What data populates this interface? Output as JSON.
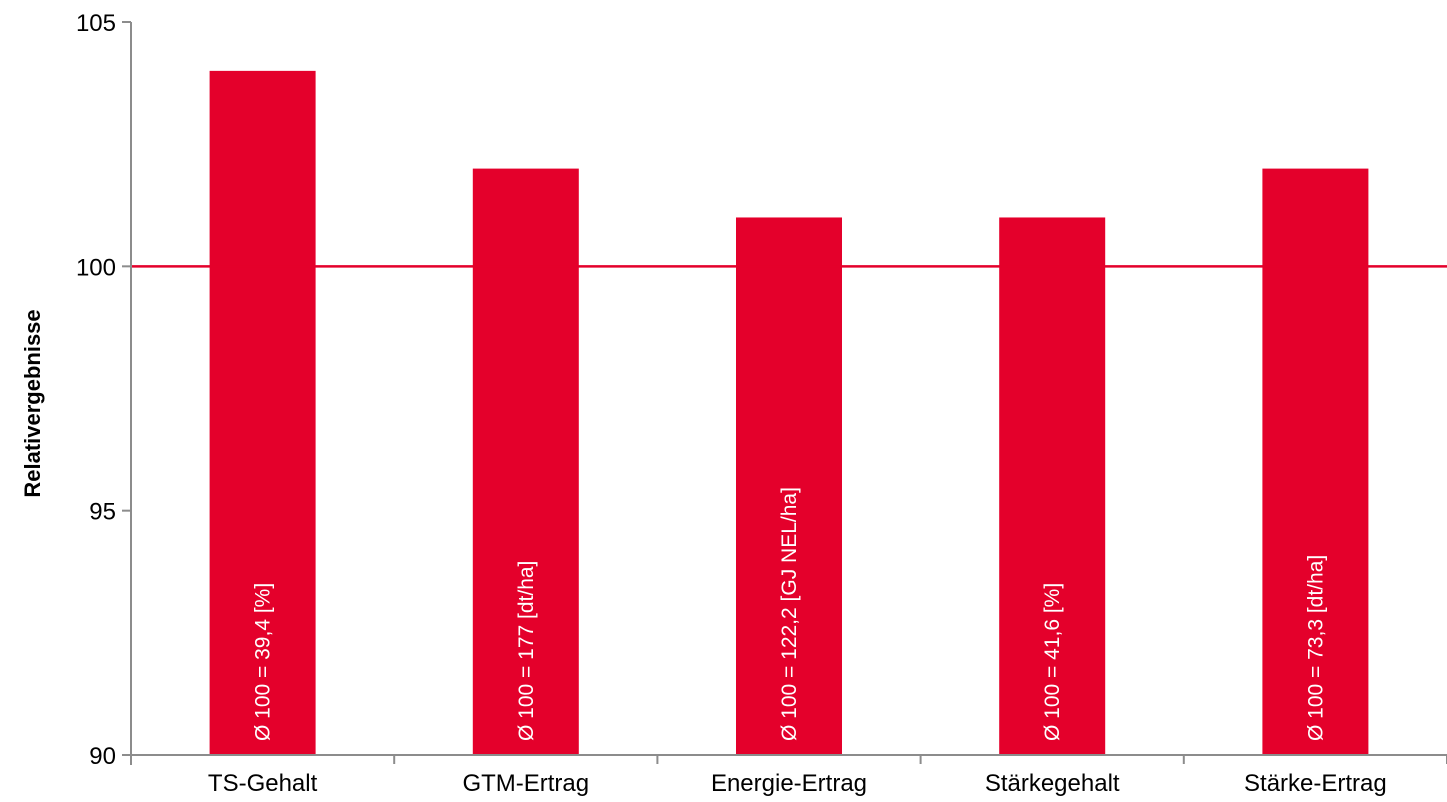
{
  "chart_data": {
    "type": "bar",
    "categories": [
      "TS-Gehalt",
      "GTM-Ertrag",
      "Energie-Ertrag",
      "Stärkegehalt",
      "Stärke-Ertrag"
    ],
    "values": [
      104,
      102,
      101,
      101,
      102
    ],
    "bar_labels": [
      "Ø 100 = 39,4 [%]",
      "Ø 100 = 177 [dt/ha]",
      "Ø 100 = 122,2 [GJ NEL/ha]",
      "Ø 100 = 41,6 [%]",
      "Ø 100 = 73,3 [dt/ha]"
    ],
    "title": "",
    "xlabel": "",
    "ylabel": "Relativergebnisse",
    "ylim": [
      90,
      105
    ],
    "yticks": [
      90,
      95,
      100,
      105
    ],
    "reference_line": 100,
    "grid": false,
    "legend": "none",
    "colors": {
      "bar": "#E4002B",
      "reference_line": "#E4002B",
      "axis": "#8c8c8c"
    }
  }
}
